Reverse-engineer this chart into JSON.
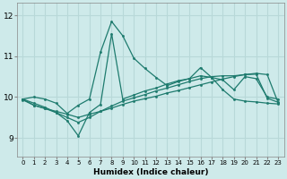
{
  "xlabel": "Humidex (Indice chaleur)",
  "ylabel": "",
  "bg_color": "#ceeaea",
  "line_color": "#1e7b6e",
  "grid_color": "#b8d8d8",
  "xlim": [
    -0.5,
    23.5
  ],
  "ylim": [
    8.55,
    12.3
  ],
  "yticks": [
    9,
    10,
    11,
    12
  ],
  "xticks": [
    0,
    1,
    2,
    3,
    4,
    5,
    6,
    7,
    8,
    9,
    10,
    11,
    12,
    13,
    14,
    15,
    16,
    17,
    18,
    19,
    20,
    21,
    22,
    23
  ],
  "series": [
    {
      "x": [
        0,
        1,
        2,
        3,
        4,
        5,
        6,
        7,
        8,
        9,
        10,
        11,
        12,
        13,
        14,
        15,
        16,
        17,
        18,
        19,
        20,
        21,
        22,
        23
      ],
      "y": [
        9.95,
        10.0,
        9.95,
        9.85,
        9.6,
        9.8,
        9.95,
        11.1,
        11.85,
        11.5,
        10.95,
        10.7,
        10.48,
        10.28,
        10.38,
        10.45,
        10.72,
        10.48,
        10.42,
        10.18,
        10.5,
        10.45,
        10.0,
        9.95
      ]
    },
    {
      "x": [
        0,
        1,
        2,
        3,
        4,
        5,
        6,
        7,
        8,
        9,
        10,
        11,
        12,
        13,
        14,
        15,
        16,
        17,
        18,
        19,
        20,
        21,
        22,
        23
      ],
      "y": [
        9.95,
        9.85,
        9.75,
        9.62,
        9.42,
        9.05,
        9.62,
        9.82,
        11.55,
        9.95,
        10.05,
        10.15,
        10.22,
        10.32,
        10.4,
        10.45,
        10.52,
        10.48,
        10.18,
        9.95,
        9.9,
        9.88,
        9.85,
        9.83
      ]
    },
    {
      "x": [
        0,
        1,
        2,
        3,
        4,
        5,
        6,
        7,
        8,
        9,
        10,
        11,
        12,
        13,
        14,
        15,
        16,
        17,
        18,
        19,
        20,
        21,
        22,
        23
      ],
      "y": [
        9.95,
        9.8,
        9.72,
        9.62,
        9.5,
        9.38,
        9.5,
        9.65,
        9.78,
        9.9,
        9.98,
        10.06,
        10.15,
        10.22,
        10.3,
        10.38,
        10.45,
        10.5,
        10.52,
        10.52,
        10.55,
        10.56,
        9.97,
        9.87
      ]
    },
    {
      "x": [
        0,
        1,
        2,
        3,
        4,
        5,
        6,
        7,
        8,
        9,
        10,
        11,
        12,
        13,
        14,
        15,
        16,
        17,
        18,
        19,
        20,
        21,
        22,
        23
      ],
      "y": [
        9.93,
        9.8,
        9.72,
        9.65,
        9.58,
        9.5,
        9.58,
        9.65,
        9.73,
        9.82,
        9.9,
        9.96,
        10.02,
        10.1,
        10.16,
        10.23,
        10.3,
        10.37,
        10.44,
        10.5,
        10.55,
        10.58,
        10.55,
        9.85
      ]
    }
  ]
}
